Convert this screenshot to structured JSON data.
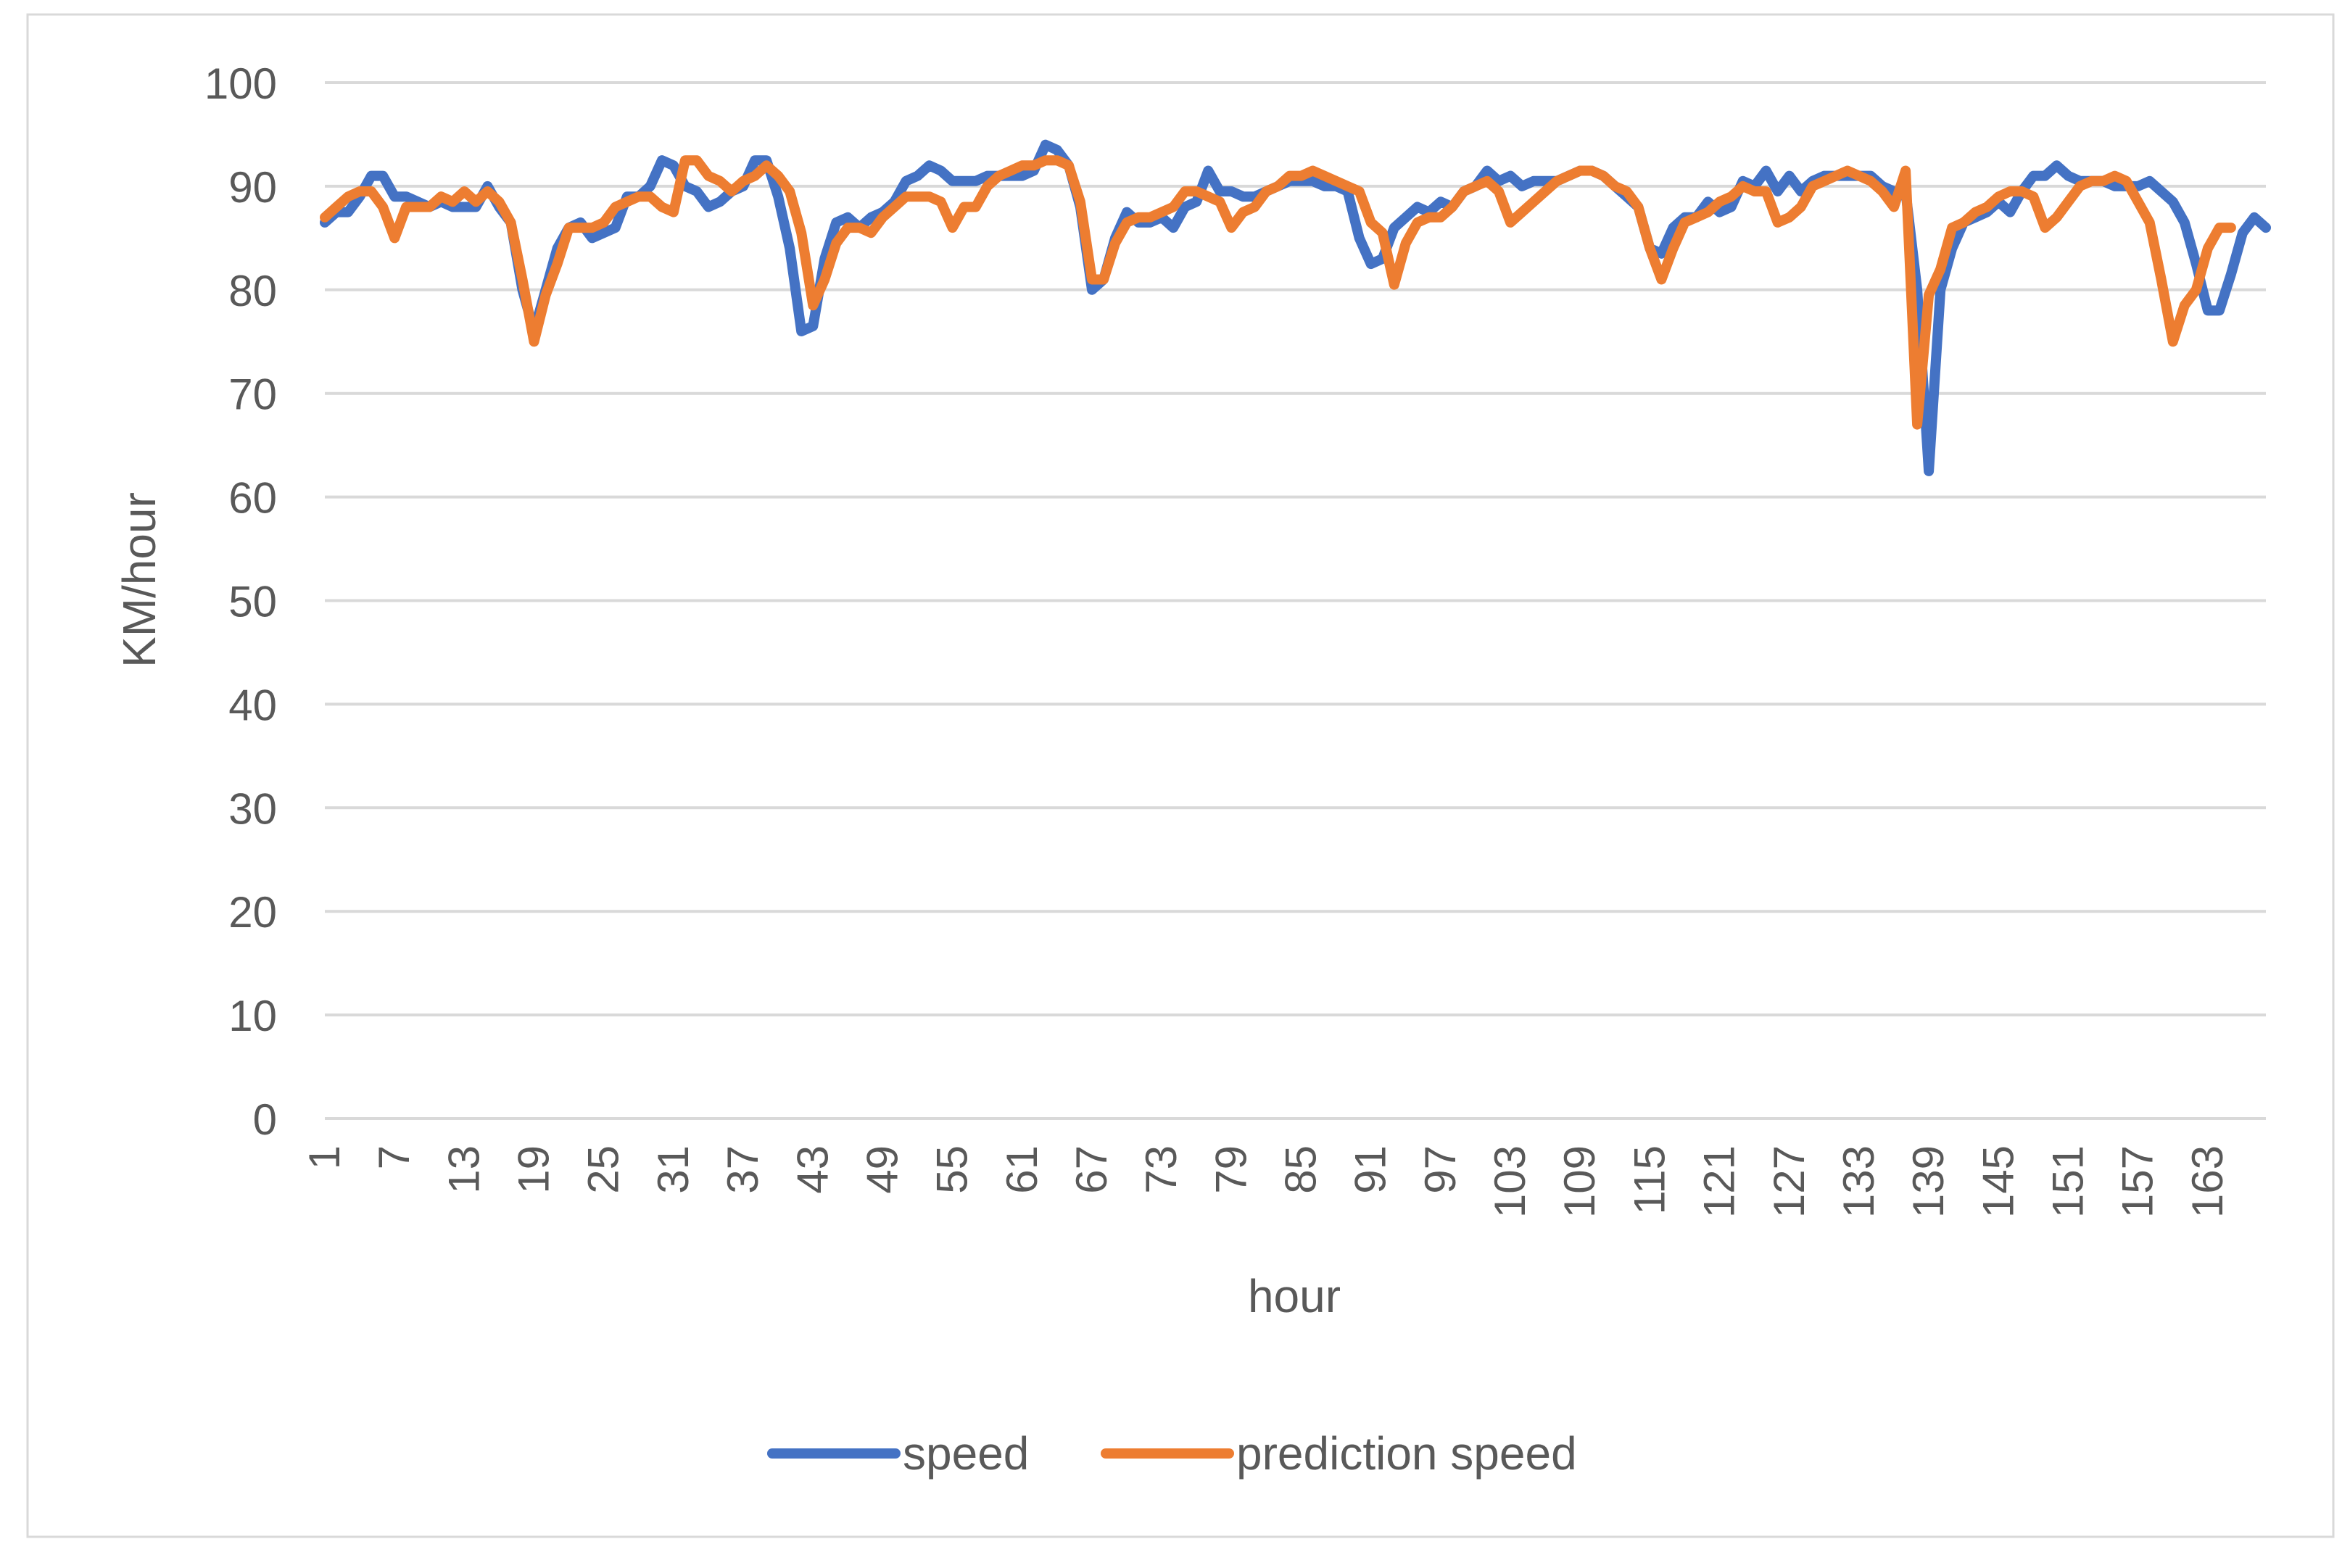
{
  "chart_data": {
    "type": "line",
    "title": "",
    "xlabel": "hour",
    "ylabel": "KM/hour",
    "ylim": [
      0,
      100
    ],
    "yticks": [
      0,
      10,
      20,
      30,
      40,
      50,
      60,
      70,
      80,
      90,
      100
    ],
    "xlim": [
      1,
      168
    ],
    "xtick_labels": [
      "1",
      "7",
      "13",
      "19",
      "25",
      "31",
      "37",
      "43",
      "49",
      "55",
      "61",
      "67",
      "73",
      "79",
      "85",
      "91",
      "97",
      "103",
      "109",
      "115",
      "121",
      "127",
      "133",
      "139",
      "145",
      "151",
      "157",
      "163"
    ],
    "grid": "horizontal",
    "legend_position": "bottom",
    "series": [
      {
        "name": "speed",
        "color": "#4472C4",
        "values": [
          86.5,
          87.5,
          87.5,
          89,
          91,
          91,
          89,
          89,
          88.5,
          88,
          88.5,
          88,
          88,
          88,
          90,
          88,
          86.5,
          80,
          76,
          80,
          84,
          86,
          86.5,
          85,
          85.5,
          86,
          89,
          89,
          90,
          92.5,
          92,
          90,
          89.5,
          88,
          88.5,
          89.5,
          90,
          92.5,
          92.5,
          89,
          84,
          76,
          76.5,
          83,
          86.5,
          87,
          86,
          87,
          87.5,
          88.5,
          90.5,
          91,
          92,
          91.5,
          90.5,
          90.5,
          90.5,
          91,
          91,
          91,
          91,
          91.5,
          94,
          93.5,
          92,
          88,
          80,
          81,
          85,
          87.5,
          86.5,
          86.5,
          87,
          86,
          88,
          88.5,
          91.5,
          89.5,
          89.5,
          89,
          89,
          89.5,
          90,
          90.5,
          90.5,
          90.5,
          90,
          90,
          89.5,
          85,
          82.5,
          83,
          86,
          87,
          88,
          87.5,
          88.5,
          88,
          89.5,
          90,
          91.5,
          90.5,
          91,
          90,
          90.5,
          90.5,
          90.5,
          91,
          91.5,
          91.5,
          91,
          90,
          89,
          88,
          84,
          83.5,
          86,
          87,
          87,
          88.5,
          87.5,
          88,
          90.5,
          90,
          91.5,
          89.5,
          91,
          89.5,
          90.5,
          91,
          91,
          91,
          91,
          91,
          90,
          89.5,
          89.5,
          80,
          62.5,
          80,
          84,
          86.5,
          87,
          87.5,
          88.5,
          87.5,
          89.5,
          91,
          91,
          92,
          91,
          90.5,
          90.5,
          90.5,
          90,
          90,
          90,
          90.5,
          89.5,
          88.5,
          86.5,
          82.5,
          78,
          78,
          81.5,
          85.5,
          87,
          86
        ]
      },
      {
        "name": "prediction speed",
        "color": "#ED7D31",
        "values": [
          87,
          88,
          89,
          89.5,
          89.5,
          88,
          85,
          88,
          88,
          88,
          89,
          88.5,
          89.5,
          88.5,
          89.5,
          88.5,
          86.5,
          81,
          75,
          79.5,
          82.5,
          86,
          86,
          86,
          86.5,
          88,
          88.5,
          89,
          89,
          88,
          87.5,
          92.5,
          92.5,
          91,
          90.5,
          89.5,
          90.5,
          91,
          92,
          91,
          89.5,
          85.5,
          78.5,
          81,
          84.5,
          86,
          86,
          85.5,
          87,
          88,
          89,
          89,
          89,
          88.5,
          86,
          88,
          88,
          90,
          91,
          91.5,
          92,
          92,
          92.5,
          92.5,
          92,
          88.5,
          81,
          81,
          84.5,
          86.5,
          87,
          87,
          87.5,
          88,
          89.5,
          89.5,
          89,
          88.5,
          86,
          87.5,
          88,
          89.5,
          90,
          91,
          91,
          91.5,
          91,
          90.5,
          90,
          89.5,
          86.5,
          85.5,
          80.5,
          84.5,
          86.5,
          87,
          87,
          88,
          89.5,
          90,
          90.5,
          89.5,
          86.5,
          87.5,
          88.5,
          89.5,
          90.5,
          91,
          91.5,
          91.5,
          91,
          90,
          89.5,
          88,
          84,
          81,
          84,
          86.5,
          87,
          87.5,
          88.5,
          89,
          90,
          89.5,
          89.5,
          86.5,
          87,
          88,
          90,
          90.5,
          91,
          91.5,
          91,
          90.5,
          89.5,
          88,
          91.5,
          67,
          79.5,
          82,
          86,
          86.5,
          87.5,
          88,
          89,
          89.5,
          89.5,
          89,
          86,
          87,
          88.5,
          90,
          90.5,
          90.5,
          91,
          90.5,
          88.5,
          86.5,
          81,
          75,
          78.5,
          80,
          84,
          86,
          86
        ]
      }
    ]
  }
}
